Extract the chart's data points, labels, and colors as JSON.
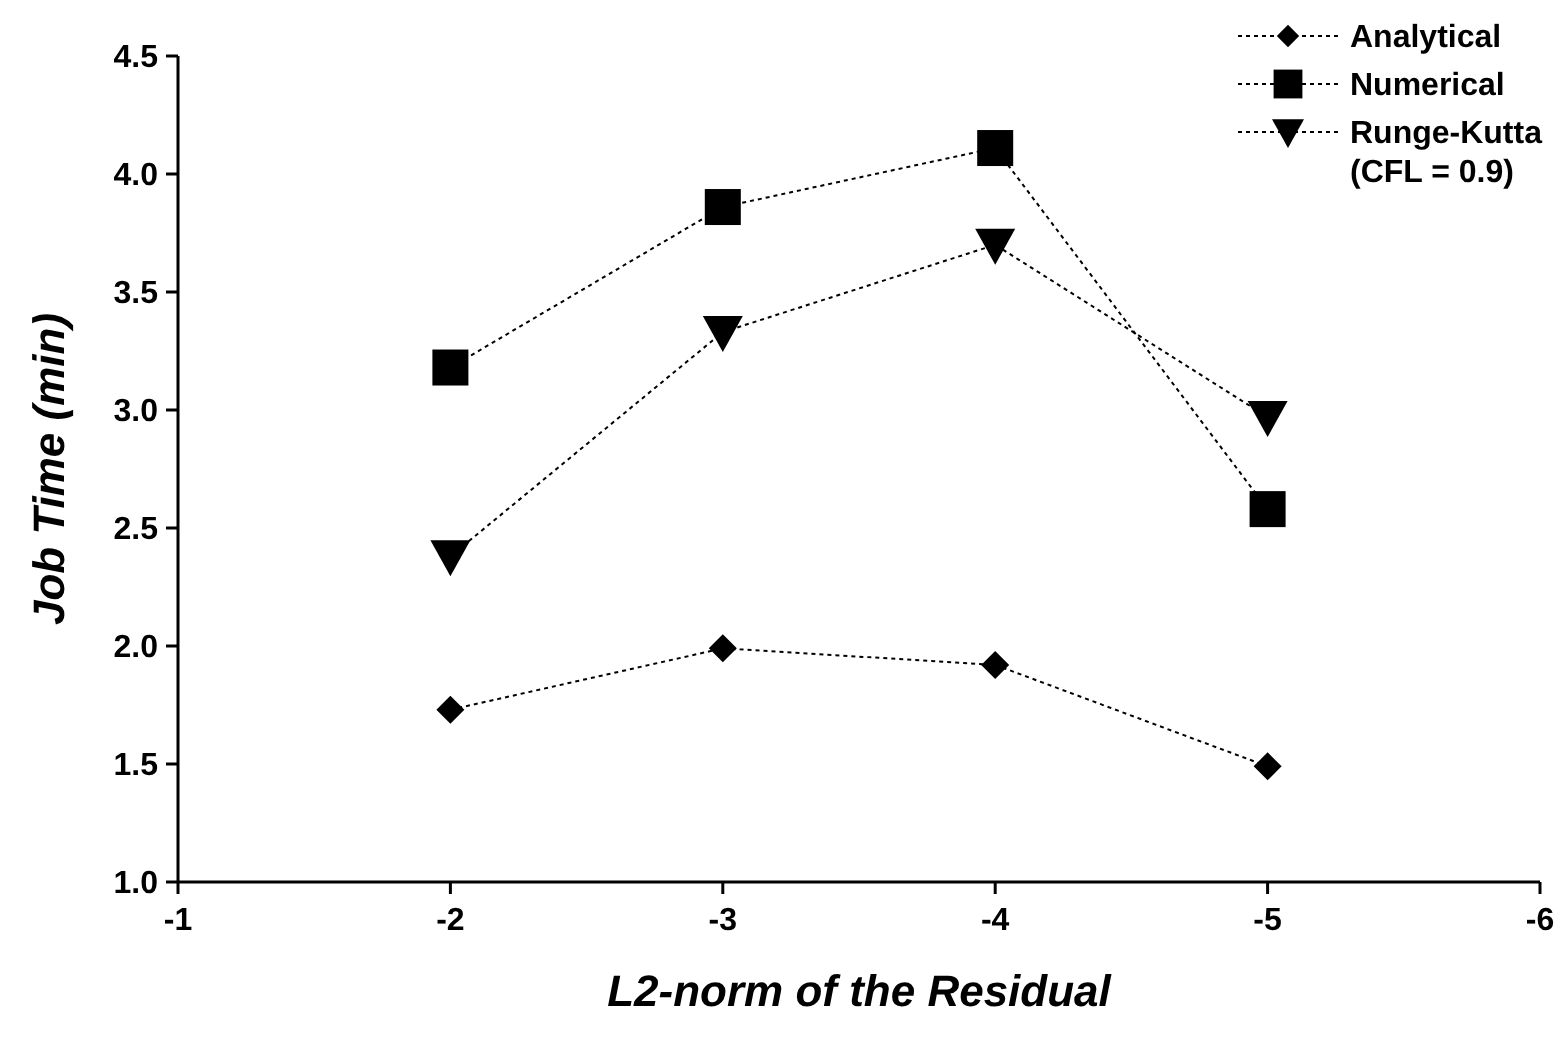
{
  "chart_data": {
    "type": "line",
    "xlabel": "L2-norm of the Residual",
    "ylabel": "Job Time (min)",
    "x": [
      -2,
      -3,
      -4,
      -5
    ],
    "xlim": [
      -1,
      -6
    ],
    "xticks": [
      -1,
      -2,
      -3,
      -4,
      -5,
      -6
    ],
    "ylim": [
      1,
      4.5
    ],
    "yticks": [
      {
        "value": 1,
        "label": "1.0"
      },
      1.5,
      {
        "value": 2,
        "label": "2.0"
      },
      2.5,
      {
        "value": 3,
        "label": "3.0"
      },
      3.5,
      {
        "value": 4,
        "label": "4.0"
      },
      4.5
    ],
    "grid": false,
    "legend": "top right",
    "line_style": "dotted",
    "series": [
      {
        "name": "Analytical",
        "color": "#000000",
        "marker": "diamond",
        "values": [
          1.73,
          1.99,
          1.92,
          1.49
        ]
      },
      {
        "name": "Numerical",
        "color": "#000000",
        "marker": "square",
        "values": [
          3.18,
          3.86,
          4.11,
          2.58
        ]
      },
      {
        "name": "Runge-Kutta\n(CFL = 0.9)",
        "color": "#000000",
        "marker": "triangle",
        "values": [
          2.38,
          3.33,
          3.7,
          2.97
        ]
      }
    ]
  }
}
